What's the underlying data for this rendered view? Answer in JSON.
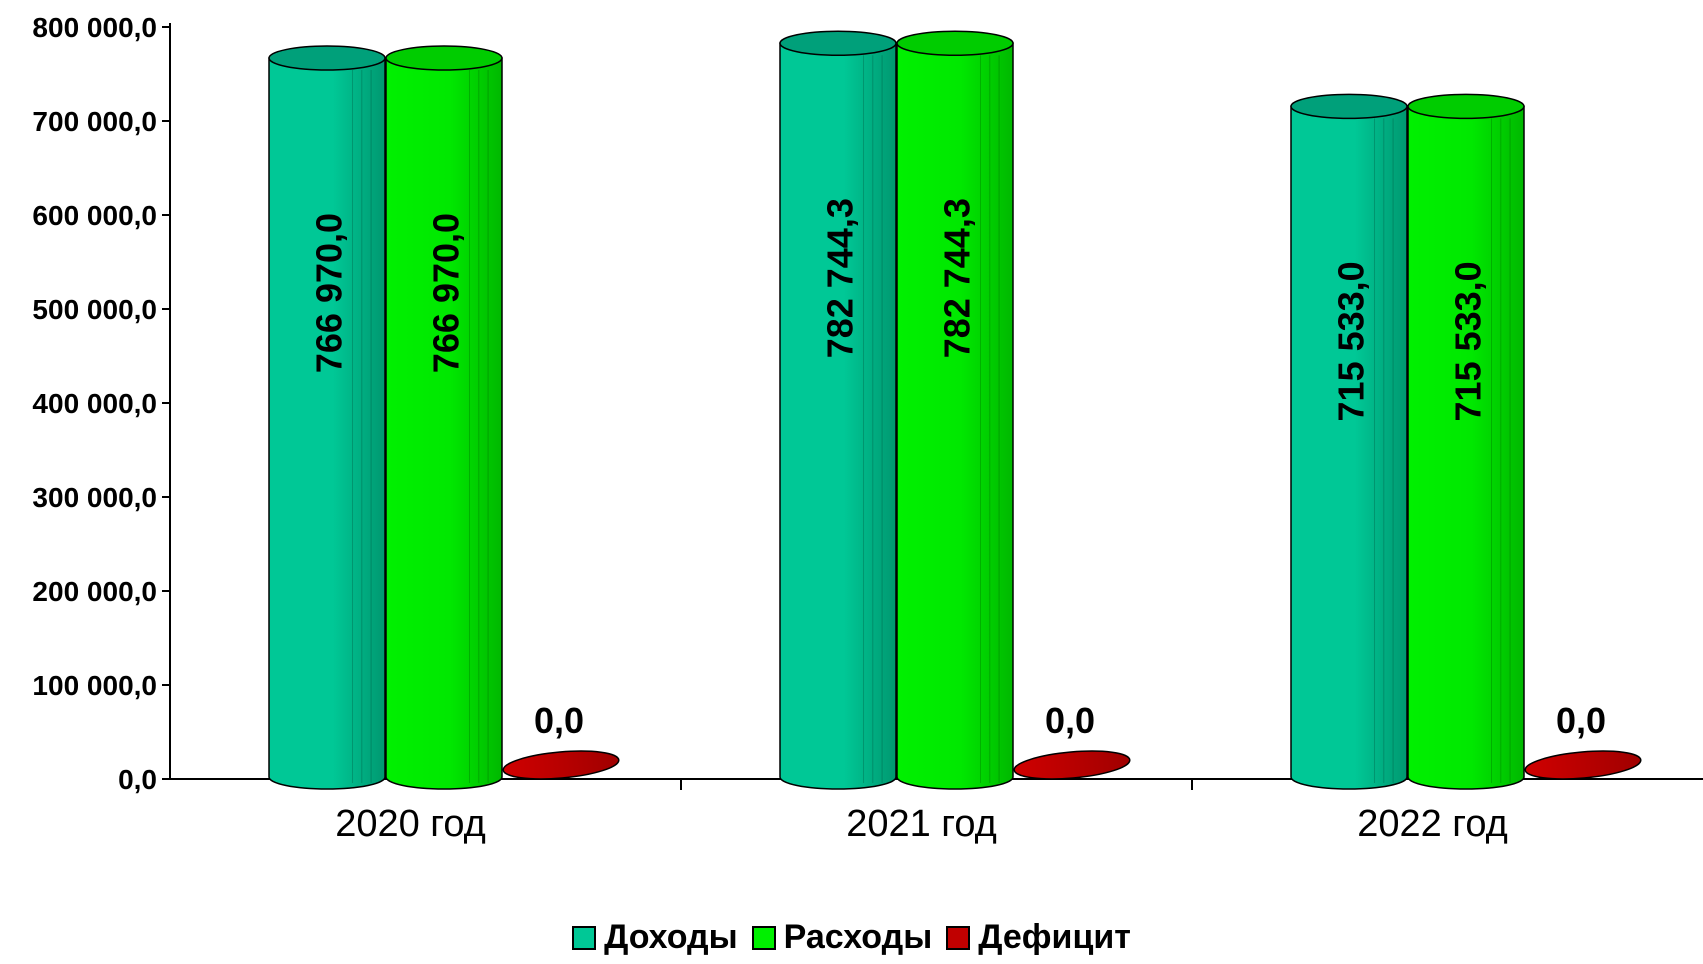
{
  "chart_data": {
    "type": "bar",
    "categories": [
      "2020 год",
      "2021 год",
      "2022 год"
    ],
    "series": [
      {
        "name": "Доходы",
        "values": [
          766970.0,
          782744.3,
          715533.0
        ],
        "labels": [
          "766 970,0",
          "782 744,3",
          "715 533,0"
        ],
        "color": "#00C896"
      },
      {
        "name": "Расходы",
        "values": [
          766970.0,
          782744.3,
          715533.0
        ],
        "labels": [
          "766 970,0",
          "782 744,3",
          "715 533,0"
        ],
        "color": "#00F000"
      },
      {
        "name": "Дефицит",
        "values": [
          0.0,
          0.0,
          0.0
        ],
        "labels": [
          "0,0",
          "0,0",
          "0,0"
        ],
        "color": "#C00000"
      }
    ],
    "ylim": [
      0,
      800000
    ],
    "yticks": [
      0,
      100000,
      200000,
      300000,
      400000,
      500000,
      600000,
      700000,
      800000
    ],
    "ytick_labels": [
      "0,0",
      "100 000,0",
      "200 000,0",
      "300 000,0",
      "400 000,0",
      "500 000,0",
      "600 000,0",
      "700 000,0",
      "800 000,0"
    ],
    "legend_position": "bottom",
    "grid": false,
    "title": "",
    "xlabel": "",
    "ylabel": ""
  }
}
